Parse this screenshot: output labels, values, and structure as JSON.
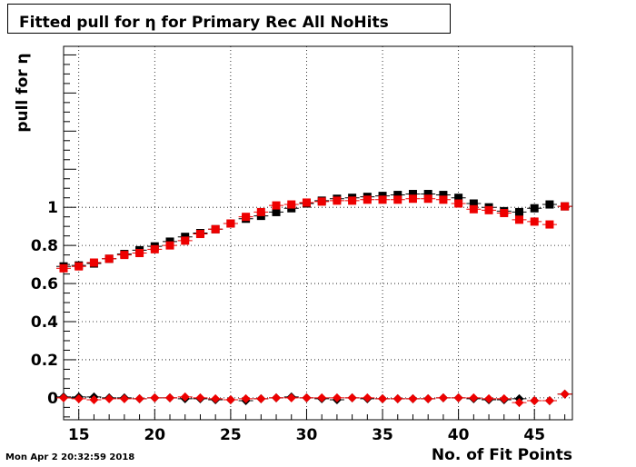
{
  "header": {
    "title": "Fitted pull for  η for Primary Rec All NoHits",
    "timestamp": "Mon Apr  2 20:32:59 2018"
  },
  "chart_data": {
    "type": "scatter",
    "title": "Fitted pull for  η for Primary Rec All NoHits",
    "xlabel": "No. of Fit Points",
    "ylabel": "pull for  η",
    "xlim": [
      14,
      47.5
    ],
    "ylim": [
      -0.115,
      1.845
    ],
    "x_ticks": [
      15,
      20,
      25,
      30,
      35,
      40,
      45
    ],
    "y_ticks": [
      0,
      0.2,
      0.4,
      0.6,
      0.8,
      1
    ],
    "y_tick_labels": [
      "0",
      "0.2",
      "0.4",
      "0.6",
      "0.8",
      "1"
    ],
    "grid": true,
    "series": [
      {
        "marker": "square",
        "color": "#000000",
        "x": [
          14,
          15,
          16,
          17,
          18,
          19,
          20,
          21,
          22,
          23,
          24,
          25,
          26,
          27,
          28,
          29,
          30,
          31,
          32,
          33,
          34,
          35,
          36,
          37,
          38,
          39,
          40,
          41,
          42,
          43,
          44,
          45,
          46,
          47
        ],
        "y": [
          0.69,
          0.695,
          0.705,
          0.73,
          0.755,
          0.775,
          0.795,
          0.82,
          0.845,
          0.865,
          0.885,
          0.915,
          0.94,
          0.955,
          0.975,
          0.995,
          1.02,
          1.035,
          1.045,
          1.05,
          1.055,
          1.06,
          1.065,
          1.07,
          1.07,
          1.065,
          1.05,
          1.02,
          1.0,
          0.98,
          0.975,
          0.995,
          1.015,
          1.005
        ]
      },
      {
        "marker": "square",
        "color": "#ee0000",
        "x": [
          14,
          15,
          16,
          17,
          18,
          19,
          20,
          21,
          22,
          23,
          24,
          25,
          26,
          27,
          28,
          29,
          30,
          31,
          32,
          33,
          34,
          35,
          36,
          37,
          38,
          39,
          40,
          41,
          42,
          43,
          44,
          45,
          46,
          47
        ],
        "y": [
          0.68,
          0.69,
          0.71,
          0.73,
          0.75,
          0.76,
          0.78,
          0.8,
          0.825,
          0.86,
          0.885,
          0.915,
          0.95,
          0.975,
          1.01,
          1.015,
          1.025,
          1.03,
          1.035,
          1.035,
          1.04,
          1.04,
          1.04,
          1.045,
          1.045,
          1.04,
          1.02,
          0.99,
          0.985,
          0.97,
          0.935,
          0.925,
          0.91,
          1.005
        ]
      },
      {
        "marker": "diamond",
        "color": "#000000",
        "x": [
          14,
          15,
          16,
          17,
          18,
          19,
          20,
          21,
          22,
          23,
          24,
          25,
          26,
          27,
          28,
          29,
          30,
          31,
          32,
          33,
          34,
          35,
          36,
          37,
          38,
          39,
          40,
          41,
          42,
          43,
          44,
          45,
          46,
          47
        ],
        "y": [
          0.005,
          0.005,
          0.005,
          0.0,
          0.0,
          -0.005,
          0.0,
          0.0,
          -0.005,
          -0.005,
          -0.01,
          -0.01,
          -0.015,
          -0.005,
          0.0,
          0.005,
          0.0,
          -0.005,
          -0.01,
          0.0,
          -0.005,
          -0.005,
          -0.005,
          -0.005,
          -0.005,
          0.0,
          0.0,
          -0.005,
          -0.01,
          -0.01,
          -0.005,
          -0.015,
          -0.015,
          0.02
        ]
      },
      {
        "marker": "diamond",
        "color": "#ee0000",
        "x": [
          14,
          15,
          16,
          17,
          18,
          19,
          20,
          21,
          22,
          23,
          24,
          25,
          26,
          27,
          28,
          29,
          30,
          31,
          32,
          33,
          34,
          35,
          36,
          37,
          38,
          39,
          40,
          41,
          42,
          43,
          44,
          45,
          46,
          47
        ],
        "y": [
          0.0,
          -0.005,
          -0.01,
          -0.005,
          -0.005,
          -0.005,
          0.0,
          0.0,
          0.005,
          0.0,
          -0.005,
          -0.01,
          -0.005,
          -0.005,
          0.0,
          0.0,
          0.0,
          0.0,
          0.0,
          0.0,
          0.0,
          -0.005,
          -0.005,
          -0.005,
          -0.005,
          0.0,
          0.0,
          0.0,
          -0.005,
          -0.005,
          -0.025,
          -0.015,
          -0.015,
          0.02
        ]
      }
    ]
  }
}
